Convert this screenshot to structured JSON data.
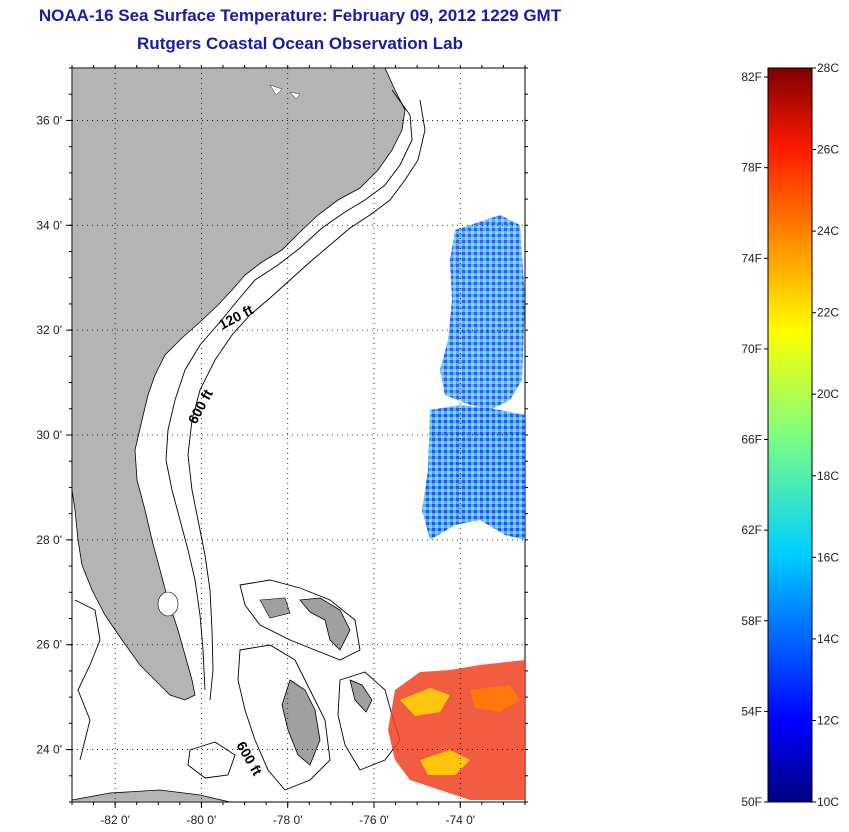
{
  "header": {
    "title": "NOAA-16 Sea Surface Temperature:  February 09, 2012 1229 GMT",
    "subtitle": "Rutgers Coastal Ocean Observation Lab"
  },
  "map": {
    "x_ticks": [
      {
        "value": -82,
        "label": "-82 0'"
      },
      {
        "value": -80,
        "label": "-80 0'"
      },
      {
        "value": -78,
        "label": "-78 0'"
      },
      {
        "value": -76,
        "label": "-76 0'"
      },
      {
        "value": -74,
        "label": "-74 0'"
      }
    ],
    "y_ticks": [
      {
        "value": 36,
        "label": "36 0'"
      },
      {
        "value": 34,
        "label": "34 0'"
      },
      {
        "value": 32,
        "label": "32 0'"
      },
      {
        "value": 30,
        "label": "30 0'"
      },
      {
        "value": 28,
        "label": "28 0'"
      },
      {
        "value": 26,
        "label": "26 0'"
      },
      {
        "value": 24,
        "label": "24 0'"
      }
    ],
    "lon_range": [
      -83,
      -72.5
    ],
    "lat_range": [
      23,
      37
    ],
    "contour_labels": [
      "120 ft",
      "600 ft",
      "600 ft"
    ],
    "land_color": "#b4b4b4",
    "grid": "dotted"
  },
  "colorbar": {
    "fahrenheit_labels": [
      "82F",
      "78F",
      "74F",
      "70F",
      "66F",
      "62F",
      "58F",
      "54F",
      "50F"
    ],
    "celsius_labels": [
      "28C",
      "26C",
      "24C",
      "22C",
      "20C",
      "18C",
      "16C",
      "14C",
      "12C",
      "10C"
    ],
    "range_c": [
      10,
      28
    ],
    "colormap": "jet"
  }
}
